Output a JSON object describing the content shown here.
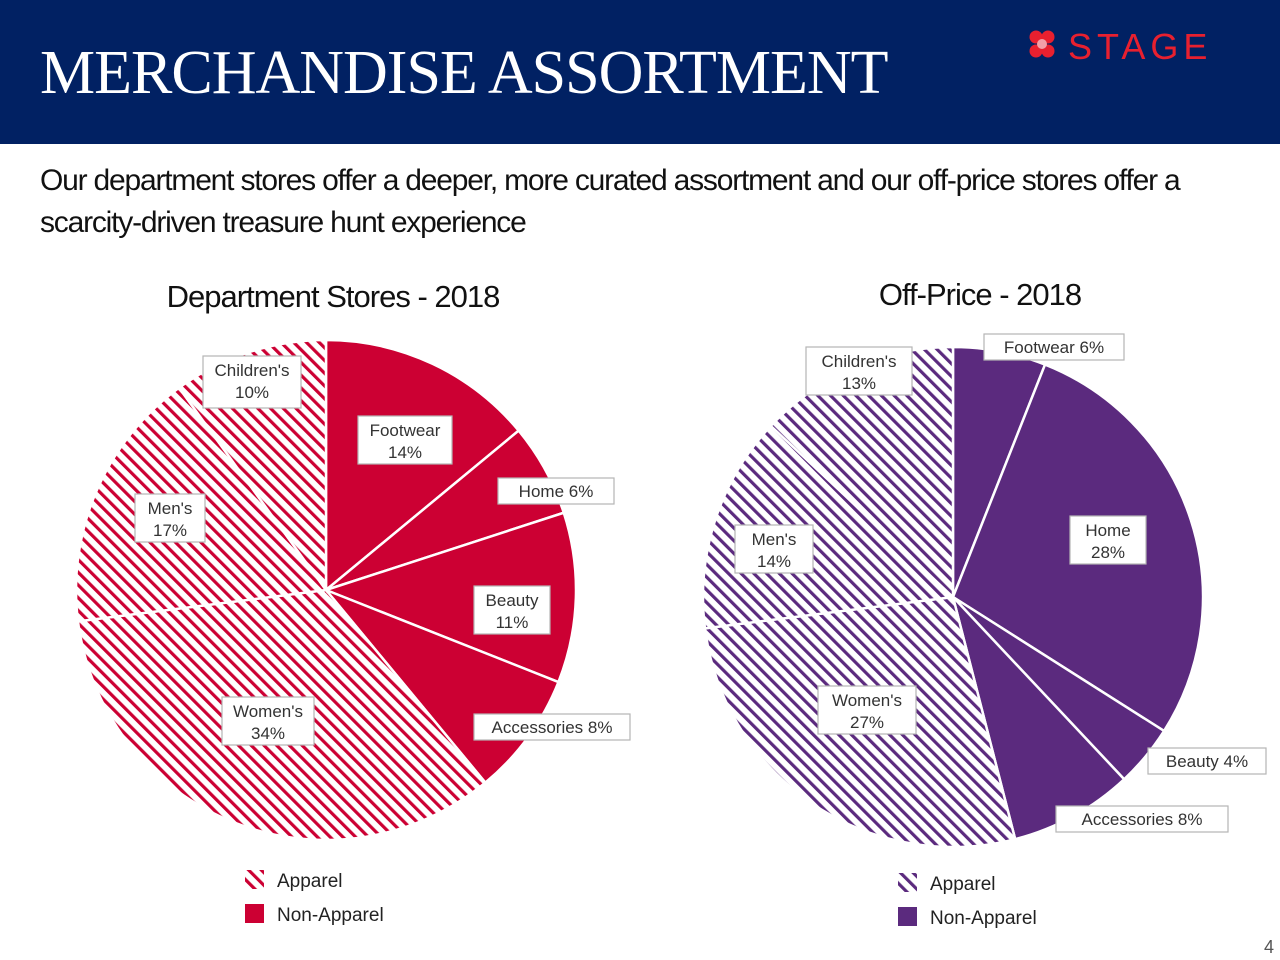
{
  "header": {
    "title": "MERCHANDISE ASSORTMENT",
    "logo_text": "STAGE",
    "background_color": "#012163"
  },
  "subtitle": "Our department stores offer a deeper, more curated assortment and our off-price stores offer a scarcity-driven treasure hunt experience",
  "page_number": "4",
  "chart_data": [
    {
      "type": "pie",
      "title": "Department Stores - 2018",
      "color": "#cc0033",
      "slices": [
        {
          "label": "Footwear",
          "value": 14,
          "value_label": "14%",
          "group": "Non-Apparel"
        },
        {
          "label": "Home",
          "value": 6,
          "value_label": "6%",
          "group": "Non-Apparel"
        },
        {
          "label": "Beauty",
          "value": 11,
          "value_label": "11%",
          "group": "Non-Apparel"
        },
        {
          "label": "Accessories",
          "value": 8,
          "value_label": "8%",
          "group": "Non-Apparel"
        },
        {
          "label": "Women's",
          "value": 34,
          "value_label": "34%",
          "group": "Apparel"
        },
        {
          "label": "Men's",
          "value": 17,
          "value_label": "17%",
          "group": "Apparel"
        },
        {
          "label": "Children's",
          "value": 10,
          "value_label": "10%",
          "group": "Apparel"
        }
      ],
      "legend": [
        {
          "label": "Apparel",
          "style": "hatched"
        },
        {
          "label": "Non-Apparel",
          "style": "solid"
        }
      ]
    },
    {
      "type": "pie",
      "title": "Off-Price - 2018",
      "color": "#5b2a7e",
      "slices": [
        {
          "label": "Footwear",
          "value": 6,
          "value_label": "6%",
          "group": "Non-Apparel"
        },
        {
          "label": "Home",
          "value": 28,
          "value_label": "28%",
          "group": "Non-Apparel"
        },
        {
          "label": "Beauty",
          "value": 4,
          "value_label": "4%",
          "group": "Non-Apparel"
        },
        {
          "label": "Accessories",
          "value": 8,
          "value_label": "8%",
          "group": "Non-Apparel"
        },
        {
          "label": "Women's",
          "value": 27,
          "value_label": "27%",
          "group": "Apparel"
        },
        {
          "label": "Men's",
          "value": 14,
          "value_label": "14%",
          "group": "Apparel"
        },
        {
          "label": "Children's",
          "value": 13,
          "value_label": "13%",
          "group": "Apparel"
        }
      ],
      "legend": [
        {
          "label": "Apparel",
          "style": "hatched"
        },
        {
          "label": "Non-Apparel",
          "style": "solid"
        }
      ]
    }
  ]
}
